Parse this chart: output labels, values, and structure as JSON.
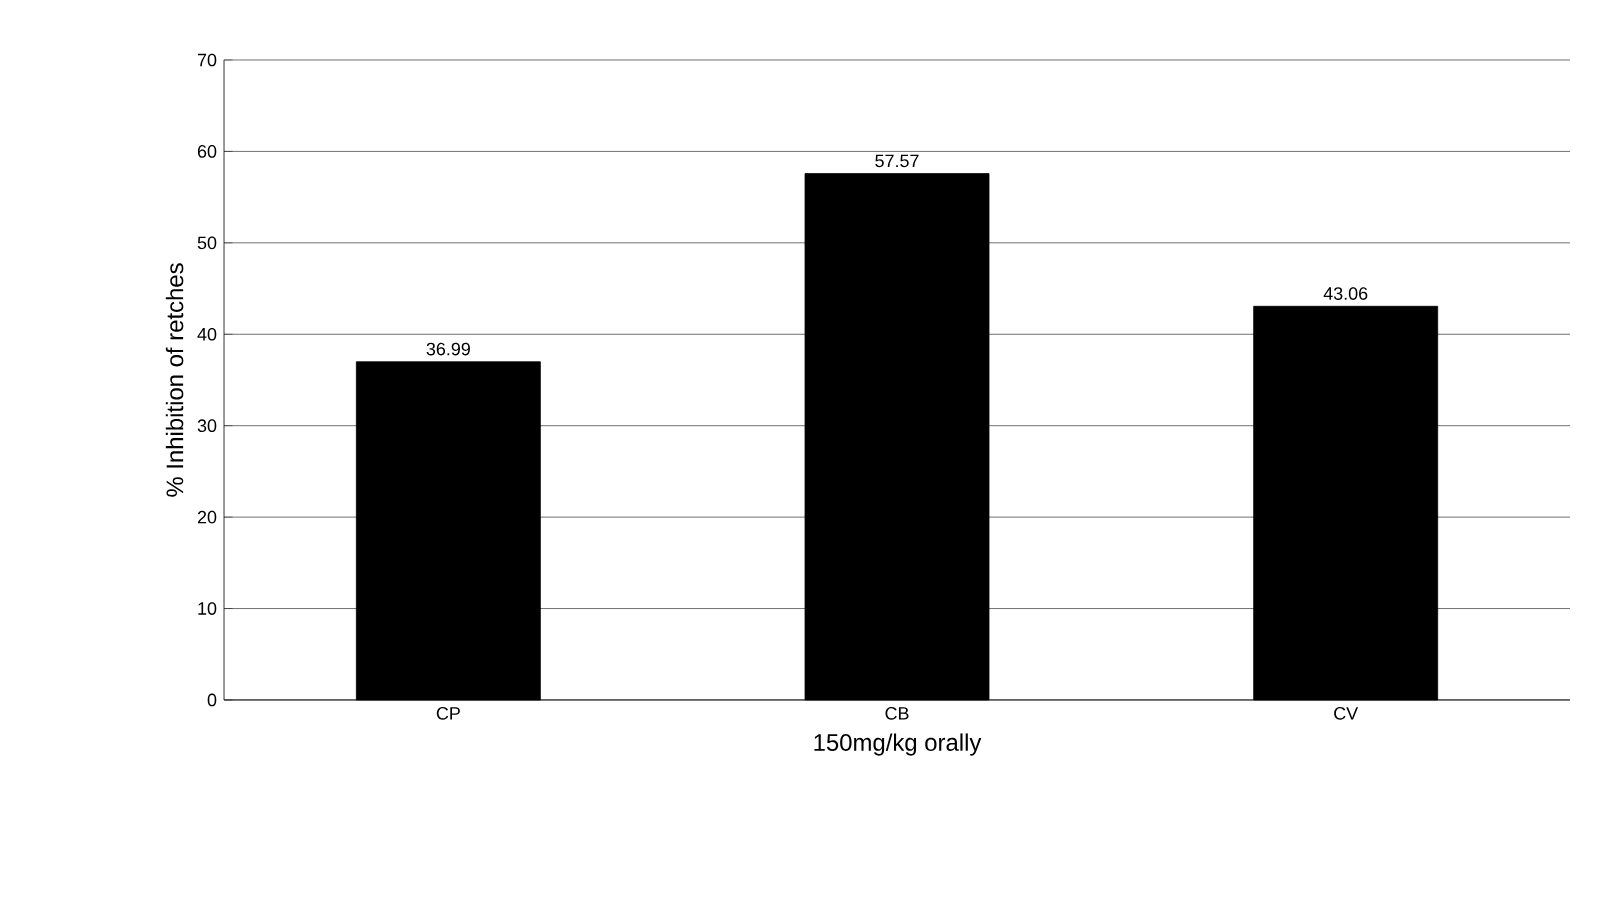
{
  "chart_data": {
    "type": "bar",
    "categories": [
      "CP",
      "CB",
      "CV"
    ],
    "values": [
      36.99,
      57.57,
      43.06
    ],
    "color": "#000000",
    "xlabel": "150mg/kg orally",
    "ylabel": "% Inhibition of retches",
    "ylim": [
      0,
      70
    ],
    "yticks": [
      0,
      10,
      20,
      30,
      40,
      50,
      60,
      70
    ],
    "grid": "y",
    "data_labels": true
  }
}
